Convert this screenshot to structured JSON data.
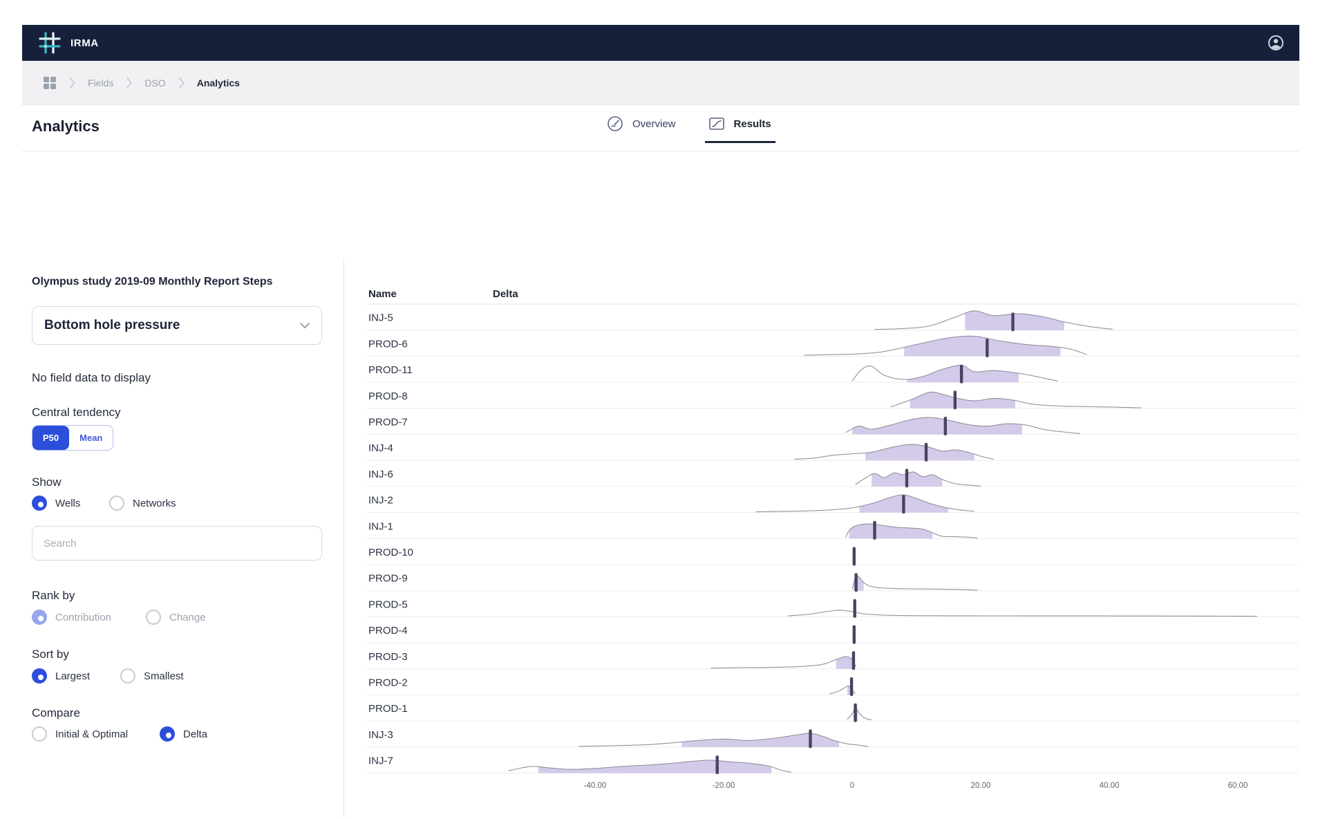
{
  "navbar": {
    "brand": "IRMA"
  },
  "breadcrumb": {
    "items": [
      "Fields",
      "DSO",
      "Analytics"
    ]
  },
  "page": {
    "title": "Analytics"
  },
  "tabs": [
    {
      "label": "Overview",
      "active": false
    },
    {
      "label": "Results",
      "active": true
    }
  ],
  "sidebar": {
    "study_title": "Olympus study 2019-09 Monthly Report Steps",
    "metric_select": {
      "value": "Bottom hole pressure"
    },
    "no_data_text": "No field data to display",
    "central_tendency": {
      "label": "Central tendency",
      "options": [
        "P50",
        "Mean"
      ],
      "selected": "P50"
    },
    "show": {
      "label": "Show",
      "options": [
        "Wells",
        "Networks"
      ],
      "selected": "Wells"
    },
    "search": {
      "placeholder": "Search"
    },
    "rank_by": {
      "label": "Rank by",
      "options": [
        "Contribution",
        "Change"
      ],
      "selected": "Contribution",
      "disabled": true
    },
    "sort_by": {
      "label": "Sort by",
      "options": [
        "Largest",
        "Smallest"
      ],
      "selected": "Largest"
    },
    "compare": {
      "label": "Compare",
      "options": [
        "Initial & Optimal",
        "Delta"
      ],
      "selected": "Delta"
    }
  },
  "colors": {
    "accent_blue": "#2b4edb",
    "disabled_blue": "#97a6ef",
    "navy": "#16203b",
    "density_fill": "#cfc4e7",
    "density_outline": "#90909c",
    "p50_marker": "#4b4163",
    "separator": "#ececf0",
    "teal_logo": "#3ab7c6"
  },
  "chart_data": {
    "type": "ridgeline",
    "columns": [
      "Name",
      "Delta"
    ],
    "xlim": [
      -75,
      69
    ],
    "grid": false,
    "ticks": [
      {
        "value": -40,
        "label": "-40.00"
      },
      {
        "value": -20,
        "label": "-20.00"
      },
      {
        "value": 0,
        "label": "0"
      },
      {
        "value": 20,
        "label": "20.00"
      },
      {
        "value": 40,
        "label": "40.00"
      },
      {
        "value": 60,
        "label": "60.00"
      }
    ],
    "wells": [
      {
        "name": "INJ-5",
        "marker": 25,
        "fill": [
          17.5,
          33
        ],
        "curve": [
          [
            3.5,
            0.03
          ],
          [
            8,
            0.07
          ],
          [
            12,
            0.18
          ],
          [
            16,
            0.55
          ],
          [
            19,
            0.82
          ],
          [
            22,
            0.62
          ],
          [
            26,
            0.7
          ],
          [
            30,
            0.55
          ],
          [
            33,
            0.35
          ],
          [
            37,
            0.15
          ],
          [
            40.5,
            0.04
          ]
        ]
      },
      {
        "name": "PROD-6",
        "marker": 21,
        "fill": [
          8,
          32.5
        ],
        "curve": [
          [
            -7.5,
            0.04
          ],
          [
            -3,
            0.07
          ],
          [
            1,
            0.1
          ],
          [
            5,
            0.2
          ],
          [
            10,
            0.5
          ],
          [
            15,
            0.78
          ],
          [
            19,
            0.85
          ],
          [
            23,
            0.65
          ],
          [
            27,
            0.5
          ],
          [
            31,
            0.42
          ],
          [
            34,
            0.3
          ],
          [
            36.5,
            0.07
          ]
        ]
      },
      {
        "name": "PROD-11",
        "marker": 17,
        "fill": [
          8.5,
          26
        ],
        "curve": [
          [
            0,
            0.06
          ],
          [
            1.5,
            0.55
          ],
          [
            3,
            0.68
          ],
          [
            5,
            0.3
          ],
          [
            8,
            0.12
          ],
          [
            11,
            0.25
          ],
          [
            14,
            0.55
          ],
          [
            17,
            0.72
          ],
          [
            19,
            0.45
          ],
          [
            22,
            0.5
          ],
          [
            25,
            0.42
          ],
          [
            28,
            0.28
          ],
          [
            32,
            0.05
          ]
        ]
      },
      {
        "name": "PROD-8",
        "marker": 16,
        "fill": [
          9,
          25.5
        ],
        "curve": [
          [
            6,
            0.06
          ],
          [
            9,
            0.35
          ],
          [
            12,
            0.68
          ],
          [
            14,
            0.6
          ],
          [
            16,
            0.45
          ],
          [
            19,
            0.32
          ],
          [
            22,
            0.42
          ],
          [
            25,
            0.35
          ],
          [
            28,
            0.18
          ],
          [
            32,
            0.1
          ],
          [
            37,
            0.07
          ],
          [
            41,
            0.05
          ],
          [
            45,
            0.02
          ]
        ]
      },
      {
        "name": "PROD-7",
        "marker": 14.5,
        "fill": [
          0,
          26.5
        ],
        "curve": [
          [
            -1,
            0.08
          ],
          [
            1,
            0.35
          ],
          [
            3,
            0.22
          ],
          [
            6,
            0.4
          ],
          [
            9,
            0.62
          ],
          [
            12,
            0.72
          ],
          [
            15,
            0.6
          ],
          [
            18,
            0.42
          ],
          [
            21,
            0.35
          ],
          [
            24,
            0.45
          ],
          [
            27,
            0.4
          ],
          [
            30,
            0.2
          ],
          [
            33,
            0.1
          ],
          [
            35.5,
            0.03
          ]
        ]
      },
      {
        "name": "INJ-4",
        "marker": 11.5,
        "fill": [
          2,
          19
        ],
        "curve": [
          [
            -9,
            0.05
          ],
          [
            -6,
            0.1
          ],
          [
            -3,
            0.22
          ],
          [
            0,
            0.28
          ],
          [
            3,
            0.35
          ],
          [
            6,
            0.55
          ],
          [
            9,
            0.68
          ],
          [
            11.5,
            0.6
          ],
          [
            14,
            0.4
          ],
          [
            16,
            0.45
          ],
          [
            18,
            0.35
          ],
          [
            20,
            0.18
          ],
          [
            22,
            0.05
          ]
        ]
      },
      {
        "name": "INJ-6",
        "marker": 8.5,
        "fill": [
          3,
          14
        ],
        "curve": [
          [
            0.5,
            0.08
          ],
          [
            2,
            0.35
          ],
          [
            3.5,
            0.55
          ],
          [
            5,
            0.38
          ],
          [
            6.5,
            0.58
          ],
          [
            8,
            0.5
          ],
          [
            9.5,
            0.62
          ],
          [
            11,
            0.42
          ],
          [
            12.5,
            0.5
          ],
          [
            14,
            0.3
          ],
          [
            16,
            0.12
          ],
          [
            18.5,
            0.05
          ],
          [
            20,
            0.02
          ]
        ]
      },
      {
        "name": "INJ-2",
        "marker": 8,
        "fill": [
          1,
          15
        ],
        "curve": [
          [
            -15,
            0.03
          ],
          [
            -11,
            0.05
          ],
          [
            -7,
            0.07
          ],
          [
            -3,
            0.12
          ],
          [
            0,
            0.2
          ],
          [
            3,
            0.38
          ],
          [
            6,
            0.65
          ],
          [
            8,
            0.75
          ],
          [
            10,
            0.6
          ],
          [
            12,
            0.4
          ],
          [
            14,
            0.25
          ],
          [
            16,
            0.14
          ],
          [
            19,
            0.05
          ]
        ]
      },
      {
        "name": "INJ-1",
        "marker": 3.5,
        "fill": [
          -0.5,
          12.5
        ],
        "curve": [
          [
            -1,
            0.06
          ],
          [
            -0.3,
            0.4
          ],
          [
            1,
            0.58
          ],
          [
            3,
            0.62
          ],
          [
            5,
            0.55
          ],
          [
            7,
            0.48
          ],
          [
            9,
            0.45
          ],
          [
            11,
            0.4
          ],
          [
            12.5,
            0.25
          ],
          [
            14,
            0.1
          ],
          [
            16,
            0.08
          ],
          [
            18,
            0.06
          ],
          [
            19.5,
            0.02
          ]
        ]
      },
      {
        "name": "PROD-10",
        "marker": 0.3,
        "fill": null,
        "curve": []
      },
      {
        "name": "PROD-9",
        "marker": 0.6,
        "fill": [
          0.2,
          1.8
        ],
        "curve": [
          [
            0,
            0.06
          ],
          [
            0.5,
            0.55
          ],
          [
            1,
            0.6
          ],
          [
            2,
            0.3
          ],
          [
            3.5,
            0.15
          ],
          [
            6,
            0.1
          ],
          [
            9,
            0.08
          ],
          [
            13,
            0.07
          ],
          [
            17,
            0.05
          ],
          [
            19.5,
            0.02
          ]
        ]
      },
      {
        "name": "PROD-5",
        "marker": 0.4,
        "fill": null,
        "curve": [
          [
            -10,
            0.04
          ],
          [
            -7,
            0.1
          ],
          [
            -4,
            0.22
          ],
          [
            -2,
            0.28
          ],
          [
            0,
            0.22
          ],
          [
            2,
            0.12
          ],
          [
            5,
            0.07
          ],
          [
            9,
            0.05
          ],
          [
            15,
            0.045
          ],
          [
            25,
            0.04
          ],
          [
            35,
            0.038
          ],
          [
            45,
            0.035
          ],
          [
            55,
            0.03
          ],
          [
            63,
            0.02
          ]
        ]
      },
      {
        "name": "PROD-4",
        "marker": 0.3,
        "fill": null,
        "curve": []
      },
      {
        "name": "PROD-3",
        "marker": 0.2,
        "fill": [
          -2.5,
          0.4
        ],
        "curve": [
          [
            -22,
            0.03
          ],
          [
            -18,
            0.05
          ],
          [
            -14,
            0.06
          ],
          [
            -10,
            0.08
          ],
          [
            -7,
            0.12
          ],
          [
            -4.5,
            0.2
          ],
          [
            -2.5,
            0.4
          ],
          [
            -1,
            0.52
          ],
          [
            0,
            0.4
          ],
          [
            0.6,
            0.08
          ]
        ]
      },
      {
        "name": "PROD-2",
        "marker": -0.1,
        "fill": [
          -0.8,
          0.2
        ],
        "curve": [
          [
            -3.5,
            0.05
          ],
          [
            -2.5,
            0.12
          ],
          [
            -1.5,
            0.25
          ],
          [
            -0.6,
            0.38
          ],
          [
            0,
            0.2
          ],
          [
            0.5,
            0.05
          ]
        ]
      },
      {
        "name": "PROD-1",
        "marker": 0.5,
        "fill": [
          0.2,
          0.9
        ],
        "curve": [
          [
            -0.8,
            0.06
          ],
          [
            0,
            0.3
          ],
          [
            0.5,
            0.55
          ],
          [
            1.2,
            0.3
          ],
          [
            2,
            0.12
          ],
          [
            3,
            0.05
          ]
        ]
      },
      {
        "name": "INJ-3",
        "marker": -6.5,
        "fill": [
          -26.5,
          -2
        ],
        "curve": [
          [
            -42.5,
            0.03
          ],
          [
            -37,
            0.06
          ],
          [
            -32,
            0.1
          ],
          [
            -28,
            0.18
          ],
          [
            -24,
            0.28
          ],
          [
            -20,
            0.34
          ],
          [
            -16,
            0.28
          ],
          [
            -12,
            0.38
          ],
          [
            -9,
            0.5
          ],
          [
            -6.5,
            0.58
          ],
          [
            -4.5,
            0.45
          ],
          [
            -3,
            0.3
          ],
          [
            -1,
            0.15
          ],
          [
            1,
            0.08
          ],
          [
            2.5,
            0.02
          ]
        ]
      },
      {
        "name": "INJ-7",
        "marker": -21,
        "fill": [
          -49,
          -12.5
        ],
        "curve": [
          [
            -53.5,
            0.1
          ],
          [
            -50,
            0.28
          ],
          [
            -47,
            0.22
          ],
          [
            -44,
            0.16
          ],
          [
            -40,
            0.2
          ],
          [
            -36,
            0.28
          ],
          [
            -32,
            0.34
          ],
          [
            -28,
            0.42
          ],
          [
            -25,
            0.5
          ],
          [
            -22,
            0.55
          ],
          [
            -19,
            0.48
          ],
          [
            -16,
            0.42
          ],
          [
            -13,
            0.3
          ],
          [
            -11,
            0.12
          ],
          [
            -9.5,
            0.04
          ]
        ]
      }
    ]
  }
}
